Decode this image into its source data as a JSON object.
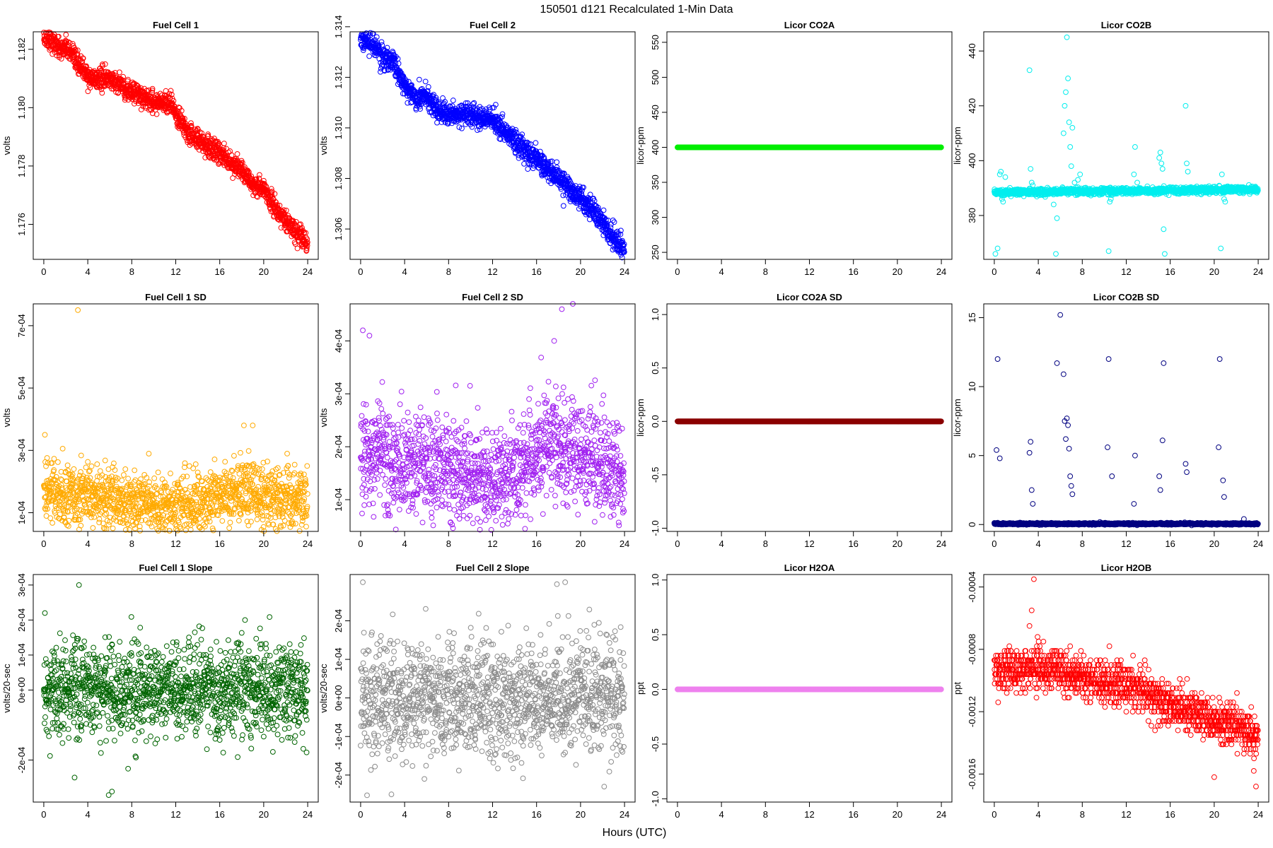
{
  "figure": {
    "title": "150501   d121   Recalculated 1-Min Data",
    "xlabel": "Hours (UTC)"
  },
  "chart_data": [
    {
      "id": "fc1",
      "type": "scatter",
      "title": "Fuel Cell 1",
      "ylabel": "volts",
      "color": "#ff0000",
      "xlim": [
        0,
        24
      ],
      "xticks": [
        0,
        4,
        8,
        12,
        16,
        20,
        24
      ],
      "ylim": [
        1.1748,
        1.1826
      ],
      "yticks": [
        1.176,
        1.178,
        1.18,
        1.182
      ],
      "ytick_labels": [
        "1.176",
        "1.178",
        "1.180",
        "1.182"
      ],
      "points_per_hour": 60,
      "trend_x": [
        0,
        0.5,
        1,
        1.5,
        2,
        2.5,
        3,
        3.5,
        4,
        5,
        6,
        7,
        8,
        9,
        10,
        11,
        11.6,
        12,
        13,
        14,
        15,
        16,
        17,
        18,
        19,
        19.5,
        20,
        21,
        22,
        23,
        24
      ],
      "trend_y": [
        1.1824,
        1.1824,
        1.1822,
        1.182,
        1.1821,
        1.1818,
        1.1815,
        1.1814,
        1.181,
        1.181,
        1.181,
        1.1808,
        1.1805,
        1.1804,
        1.1802,
        1.1802,
        1.1802,
        1.1797,
        1.1792,
        1.1789,
        1.1787,
        1.1784,
        1.1782,
        1.1778,
        1.1774,
        1.1772,
        1.1772,
        1.1766,
        1.1761,
        1.1757,
        1.1753
      ],
      "noise": 0.00018,
      "outliers": []
    },
    {
      "id": "fc2",
      "type": "scatter",
      "title": "Fuel Cell 2",
      "ylabel": "volts",
      "color": "#0000ff",
      "xlim": [
        0,
        24
      ],
      "xticks": [
        0,
        4,
        8,
        12,
        16,
        20,
        24
      ],
      "ylim": [
        1.3048,
        1.3138
      ],
      "yticks": [
        1.306,
        1.308,
        1.31,
        1.312,
        1.314
      ],
      "ytick_labels": [
        "1.306",
        "1.308",
        "1.310",
        "1.312",
        "1.314"
      ],
      "points_per_hour": 60,
      "trend_x": [
        0,
        1,
        2,
        3,
        4,
        5,
        6,
        7,
        8,
        9,
        10,
        11,
        12,
        13,
        14,
        15,
        16,
        17,
        18,
        19,
        20,
        21,
        22,
        23,
        24
      ],
      "trend_y": [
        1.3135,
        1.3133,
        1.3128,
        1.3126,
        1.3117,
        1.3112,
        1.3112,
        1.3107,
        1.3106,
        1.3106,
        1.3105,
        1.3104,
        1.3103,
        1.3099,
        1.3095,
        1.3091,
        1.3088,
        1.3084,
        1.308,
        1.3076,
        1.3072,
        1.3068,
        1.3062,
        1.3056,
        1.3052
      ],
      "noise": 0.00022,
      "outliers": []
    },
    {
      "id": "co2a",
      "type": "scatter",
      "title": "Licor CO2A",
      "ylabel": "licor-ppm",
      "color": "#00ee00",
      "xlim": [
        0,
        24
      ],
      "xticks": [
        0,
        4,
        8,
        12,
        16,
        20,
        24
      ],
      "ylim": [
        240,
        565
      ],
      "yticks": [
        250,
        300,
        350,
        400,
        450,
        500,
        550
      ],
      "ytick_labels": [
        "250",
        "300",
        "350",
        "400",
        "450",
        "500",
        "550"
      ],
      "points_per_hour": 60,
      "trend_x": [
        0,
        24
      ],
      "trend_y": [
        400,
        400
      ],
      "noise": 0,
      "outliers": []
    },
    {
      "id": "co2b",
      "type": "scatter",
      "title": "Licor CO2B",
      "ylabel": "licor-ppm",
      "color": "#00eeee",
      "xlim": [
        0,
        24
      ],
      "xticks": [
        0,
        4,
        8,
        12,
        16,
        20,
        24
      ],
      "ylim": [
        364,
        447
      ],
      "yticks": [
        380,
        400,
        420,
        440
      ],
      "ytick_labels": [
        "380",
        "400",
        "420",
        "440"
      ],
      "points_per_hour": 60,
      "trend_x": [
        0,
        24
      ],
      "trend_y": [
        388.5,
        389.5
      ],
      "noise": 0.6,
      "outliers": [
        [
          0.1,
          366
        ],
        [
          0.3,
          368
        ],
        [
          0.5,
          395
        ],
        [
          0.6,
          396
        ],
        [
          0.7,
          386
        ],
        [
          0.8,
          385
        ],
        [
          1.0,
          394
        ],
        [
          3.2,
          433
        ],
        [
          3.3,
          397
        ],
        [
          3.4,
          392
        ],
        [
          3.5,
          391
        ],
        [
          5.2,
          389
        ],
        [
          5.4,
          384
        ],
        [
          5.6,
          366
        ],
        [
          5.7,
          379
        ],
        [
          6.3,
          410
        ],
        [
          6.4,
          420
        ],
        [
          6.5,
          425
        ],
        [
          6.6,
          445
        ],
        [
          6.7,
          430
        ],
        [
          6.8,
          414
        ],
        [
          6.9,
          405
        ],
        [
          7.0,
          398
        ],
        [
          7.1,
          412
        ],
        [
          7.3,
          392
        ],
        [
          7.6,
          393
        ],
        [
          7.8,
          395
        ],
        [
          10.4,
          367
        ],
        [
          10.5,
          385
        ],
        [
          10.6,
          386
        ],
        [
          12.7,
          395
        ],
        [
          12.8,
          405
        ],
        [
          13.0,
          392
        ],
        [
          15.0,
          401
        ],
        [
          15.1,
          403
        ],
        [
          15.2,
          399
        ],
        [
          15.3,
          397
        ],
        [
          15.4,
          375
        ],
        [
          15.5,
          366
        ],
        [
          17.4,
          420
        ],
        [
          17.5,
          399
        ],
        [
          17.6,
          396
        ],
        [
          20.6,
          368
        ],
        [
          20.7,
          395
        ],
        [
          20.9,
          386
        ],
        [
          21.0,
          385
        ]
      ]
    },
    {
      "id": "fc1sd",
      "type": "scatter",
      "title": "Fuel Cell 1 SD",
      "ylabel": "volts",
      "color": "#ffaa00",
      "xlim": [
        0,
        24
      ],
      "xticks": [
        0,
        4,
        8,
        12,
        16,
        20,
        24
      ],
      "ylim": [
        4e-05,
        0.00077
      ],
      "yticks": [
        0.0001,
        0.0003,
        0.0005,
        0.0007
      ],
      "ytick_labels": [
        "1e-04",
        "3e-04",
        "5e-04",
        "7e-04"
      ],
      "points_per_hour": 60,
      "trend_x": [
        0,
        4,
        8,
        12,
        14,
        16,
        18,
        20,
        22,
        24
      ],
      "trend_y": [
        0.00017,
        0.00015,
        0.00013,
        0.00012,
        0.00013,
        0.00016,
        0.00017,
        0.00016,
        0.00014,
        0.00013
      ],
      "noise": 5e-05,
      "outliers": [
        [
          3.1,
          0.00075
        ],
        [
          0.1,
          0.00035
        ],
        [
          18.2,
          0.00038
        ],
        [
          19.0,
          0.00038
        ]
      ]
    },
    {
      "id": "fc2sd",
      "type": "scatter",
      "title": "Fuel Cell 2 SD",
      "ylabel": "volts",
      "color": "#a020f0",
      "xlim": [
        0,
        24
      ],
      "xticks": [
        0,
        4,
        8,
        12,
        16,
        20,
        24
      ],
      "ylim": [
        4e-05,
        0.00047
      ],
      "yticks": [
        0.0001,
        0.0002,
        0.0003,
        0.0004
      ],
      "ytick_labels": [
        "1e-04",
        "2e-04",
        "3e-04",
        "4e-04"
      ],
      "points_per_hour": 60,
      "trend_x": [
        0,
        4,
        8,
        12,
        14,
        16,
        18,
        20,
        24
      ],
      "trend_y": [
        0.00019,
        0.00017,
        0.00015,
        0.00014,
        0.00014,
        0.00019,
        0.0002,
        0.00018,
        0.00014
      ],
      "noise": 5e-05,
      "outliers": [
        [
          0.2,
          0.00042
        ],
        [
          0.8,
          0.00041
        ],
        [
          18.3,
          0.00046
        ],
        [
          19.3,
          0.00047
        ],
        [
          17.6,
          0.0004
        ]
      ]
    },
    {
      "id": "co2asd",
      "type": "scatter",
      "title": "Licor CO2A SD",
      "ylabel": "licor-ppm",
      "color": "#8b0000",
      "xlim": [
        0,
        24
      ],
      "xticks": [
        0,
        4,
        8,
        12,
        16,
        20,
        24
      ],
      "ylim": [
        -1.03,
        1.1
      ],
      "yticks": [
        -1,
        -0.5,
        0,
        0.5,
        1
      ],
      "ytick_labels": [
        "-1.0",
        "-0.5",
        "0.0",
        "0.5",
        "1.0"
      ],
      "points_per_hour": 60,
      "trend_x": [
        0,
        24
      ],
      "trend_y": [
        0,
        0
      ],
      "noise": 0,
      "outliers": []
    },
    {
      "id": "co2bsd",
      "type": "scatter",
      "title": "Licor CO2B SD",
      "ylabel": "licor-ppm",
      "color": "#000080",
      "xlim": [
        0,
        24
      ],
      "xticks": [
        0,
        4,
        8,
        12,
        16,
        20,
        24
      ],
      "ylim": [
        -0.5,
        16
      ],
      "yticks": [
        0,
        5,
        10,
        15
      ],
      "ytick_labels": [
        "0",
        "5",
        "10",
        "15"
      ],
      "points_per_hour": 60,
      "trend_x": [
        0,
        24
      ],
      "trend_y": [
        0.05,
        0.05
      ],
      "noise": 0.03,
      "outliers": [
        [
          0.3,
          12.0
        ],
        [
          0.2,
          5.4
        ],
        [
          0.5,
          4.8
        ],
        [
          3.3,
          6.0
        ],
        [
          3.2,
          5.2
        ],
        [
          3.4,
          2.5
        ],
        [
          3.5,
          1.5
        ],
        [
          5.7,
          11.7
        ],
        [
          6.0,
          15.2
        ],
        [
          6.3,
          10.9
        ],
        [
          6.4,
          7.5
        ],
        [
          6.5,
          6.2
        ],
        [
          6.6,
          7.7
        ],
        [
          6.7,
          7.2
        ],
        [
          6.8,
          5.5
        ],
        [
          6.9,
          3.5
        ],
        [
          7.0,
          2.8
        ],
        [
          7.1,
          2.2
        ],
        [
          10.4,
          12.0
        ],
        [
          10.7,
          3.5
        ],
        [
          10.3,
          5.6
        ],
        [
          12.8,
          5.0
        ],
        [
          12.7,
          1.5
        ],
        [
          15.0,
          3.5
        ],
        [
          15.1,
          2.5
        ],
        [
          15.4,
          11.7
        ],
        [
          15.3,
          6.1
        ],
        [
          17.4,
          4.4
        ],
        [
          17.5,
          3.8
        ],
        [
          20.5,
          12.0
        ],
        [
          20.4,
          5.6
        ],
        [
          20.8,
          3.2
        ],
        [
          20.9,
          2.0
        ],
        [
          22.7,
          0.4
        ]
      ]
    },
    {
      "id": "fc1slope",
      "type": "scatter",
      "title": "Fuel Cell 1 Slope",
      "ylabel": "volts/20-sec",
      "color": "#006400",
      "xlim": [
        0,
        24
      ],
      "xticks": [
        0,
        4,
        8,
        12,
        16,
        20,
        24
      ],
      "ylim": [
        -0.00032,
        0.00033
      ],
      "yticks": [
        -0.0002,
        0,
        0.0001,
        0.0002,
        0.0003
      ],
      "ytick_labels": [
        "-2e-04",
        "0e+00",
        "1e-04",
        "2e-04",
        "3e-04"
      ],
      "points_per_hour": 60,
      "trend_x": [
        0,
        24
      ],
      "trend_y": [
        0,
        0
      ],
      "noise": 6.5e-05,
      "outliers": [
        [
          0.1,
          0.00022
        ],
        [
          3.2,
          0.0003
        ],
        [
          2.8,
          -0.00025
        ],
        [
          5.9,
          -0.0003
        ],
        [
          6.2,
          -0.00029
        ],
        [
          18.3,
          0.0002
        ]
      ]
    },
    {
      "id": "fc2slope",
      "type": "scatter",
      "title": "Fuel Cell 2 Slope",
      "ylabel": "volts/20-sec",
      "color": "#8c8c8c",
      "xlim": [
        0,
        24
      ],
      "xticks": [
        0,
        4,
        8,
        12,
        16,
        20,
        24
      ],
      "ylim": [
        -0.00027,
        0.00032
      ],
      "yticks": [
        -0.0002,
        -0.0001,
        0,
        0.0001,
        0.0002
      ],
      "ytick_labels": [
        "-2e-04",
        "-1e-04",
        "0e+00",
        "1e-04",
        "2e-04"
      ],
      "points_per_hour": 60,
      "trend_x": [
        0,
        24
      ],
      "trend_y": [
        0,
        0
      ],
      "noise": 7.5e-05,
      "outliers": [
        [
          0.2,
          0.0003
        ],
        [
          2.8,
          -0.00025
        ],
        [
          5.8,
          -0.00021
        ],
        [
          18.6,
          0.0003
        ]
      ]
    },
    {
      "id": "h2oa",
      "type": "scatter",
      "title": "Licor H2OA",
      "ylabel": "ppt",
      "color": "#ee82ee",
      "xlim": [
        0,
        24
      ],
      "xticks": [
        0,
        4,
        8,
        12,
        16,
        20,
        24
      ],
      "ylim": [
        -1.03,
        1.05
      ],
      "yticks": [
        -1,
        -0.5,
        0,
        0.5,
        1
      ],
      "ytick_labels": [
        "-1.0",
        "-0.5",
        "0.0",
        "0.5",
        "1.0"
      ],
      "points_per_hour": 60,
      "trend_x": [
        0,
        24
      ],
      "trend_y": [
        0,
        0
      ],
      "noise": 0,
      "outliers": []
    },
    {
      "id": "h2ob",
      "type": "scatter",
      "title": "Licor H2OB",
      "ylabel": "ppt",
      "color": "#ff0000",
      "xlim": [
        0,
        24
      ],
      "xticks": [
        0,
        4,
        8,
        12,
        16,
        20,
        24
      ],
      "ylim": [
        -0.00178,
        -0.00032
      ],
      "yticks": [
        -0.0016,
        -0.0012,
        -0.0008,
        -0.0004
      ],
      "ytick_labels": [
        "-0.0016",
        "-0.0012",
        "-0.0008",
        "-0.0004"
      ],
      "points_per_hour": 60,
      "trend_x": [
        0,
        4,
        8,
        12,
        16,
        20,
        24
      ],
      "trend_y": [
        -0.00095,
        -0.00092,
        -0.00098,
        -0.00103,
        -0.00115,
        -0.00125,
        -0.00135
      ],
      "noise": 7e-05,
      "quantum": 3e-05,
      "outliers": [
        [
          3.6,
          -0.00035
        ],
        [
          3.4,
          -0.00055
        ],
        [
          3.2,
          -0.00065
        ],
        [
          20.0,
          -0.00162
        ],
        [
          23.8,
          -0.00168
        ],
        [
          23.6,
          -0.00158
        ]
      ]
    }
  ]
}
